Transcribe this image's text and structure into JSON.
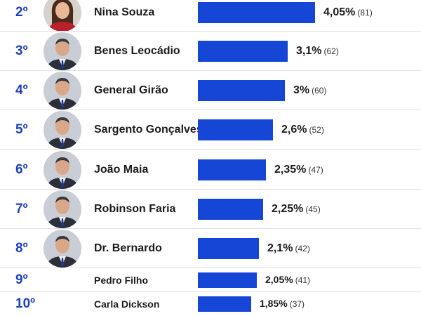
{
  "colors": {
    "bar": "#1646d6",
    "rank": "#1d3fbf"
  },
  "chart_data": {
    "type": "bar",
    "orientation": "horizontal",
    "value_unit": "%",
    "rows": [
      {
        "rank": "2º",
        "name": "Nina Souza",
        "pct": 4.05,
        "pct_label": "4,05%",
        "votes": "(81)",
        "photo": "woman-portrait-icon"
      },
      {
        "rank": "3º",
        "name": "Benes Leocádio",
        "pct": 3.1,
        "pct_label": "3,1%",
        "votes": "(62)",
        "photo": "man-portrait-icon"
      },
      {
        "rank": "4º",
        "name": "General Girão",
        "pct": 3.0,
        "pct_label": "3%",
        "votes": "(60)",
        "photo": "man-portrait-icon"
      },
      {
        "rank": "5º",
        "name": "Sargento Gonçalves",
        "pct": 2.6,
        "pct_label": "2,6%",
        "votes": "(52)",
        "photo": "man-portrait-icon"
      },
      {
        "rank": "6º",
        "name": "João Maia",
        "pct": 2.35,
        "pct_label": "2,35%",
        "votes": "(47)",
        "photo": "man-portrait-icon"
      },
      {
        "rank": "7º",
        "name": "Robinson Faria",
        "pct": 2.25,
        "pct_label": "2,25%",
        "votes": "(45)",
        "photo": "man-portrait-icon"
      },
      {
        "rank": "8º",
        "name": "Dr. Bernardo",
        "pct": 2.1,
        "pct_label": "2,1%",
        "votes": "(42)",
        "photo": "man-portrait-icon"
      },
      {
        "rank": "9º",
        "name": "Pedro Filho",
        "pct": 2.05,
        "pct_label": "2,05%",
        "votes": "(41)",
        "photo": null
      },
      {
        "rank": "10º",
        "name": "Carla Dickson",
        "pct": 1.85,
        "pct_label": "1,85%",
        "votes": "(37)",
        "photo": null
      }
    ]
  }
}
